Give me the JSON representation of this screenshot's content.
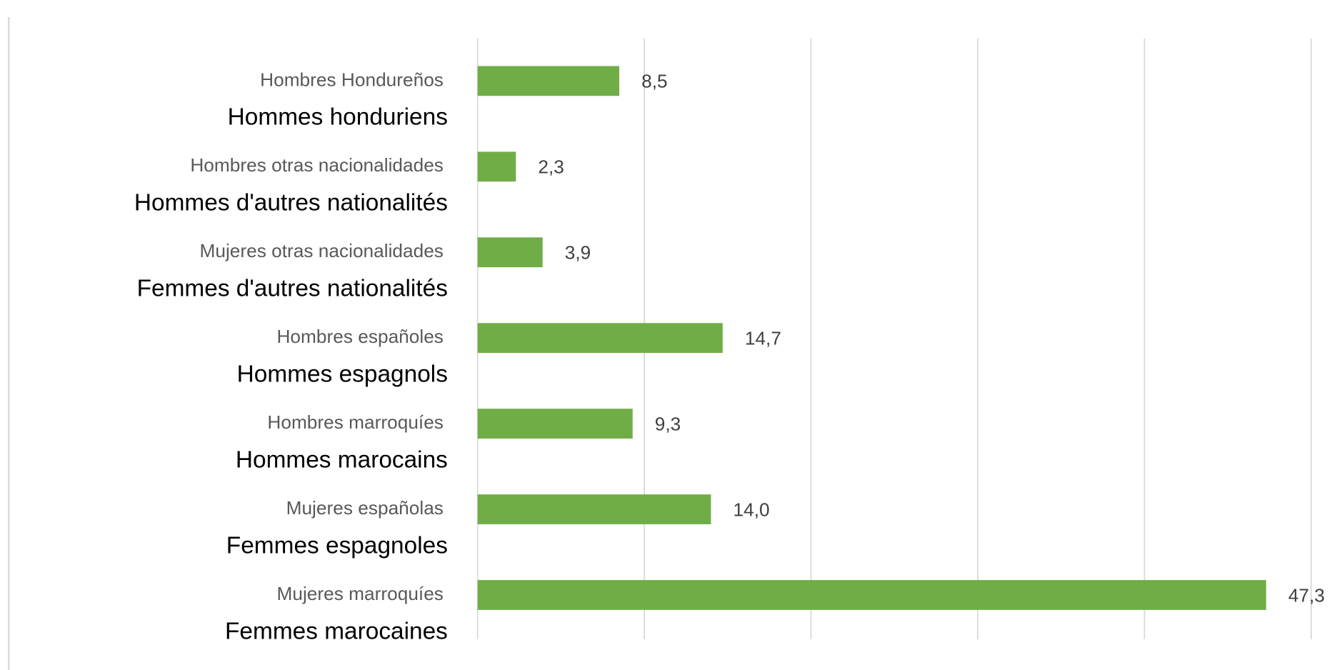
{
  "chart_data": {
    "type": "barh",
    "categories": [
      "Hombres Hondureños",
      "Hombres otras nacionalidades",
      "Mujeres otras nacionalidades",
      "Hombres españoles",
      "Hombres marroquíes",
      "Mujeres españolas",
      "Mujeres marroquíes"
    ],
    "categories_fr": [
      "Hommes honduriens",
      "Hommes d'autres nationalités",
      "Femmes d'autres nationalités",
      "Hommes espagnols",
      "Hommes marocains",
      "Femmes espagnoles",
      "Femmes marocaines"
    ],
    "values": [
      8.5,
      2.3,
      3.9,
      14.7,
      9.3,
      14.0,
      47.3
    ],
    "value_labels": [
      "8,5",
      "2,3",
      "3,9",
      "14,7",
      "9,3",
      "14,0",
      "47,3"
    ],
    "color": "#70ad47",
    "xlim": [
      0,
      50
    ],
    "xticks": [
      0,
      10,
      20,
      30,
      40,
      50
    ],
    "grid": true
  }
}
